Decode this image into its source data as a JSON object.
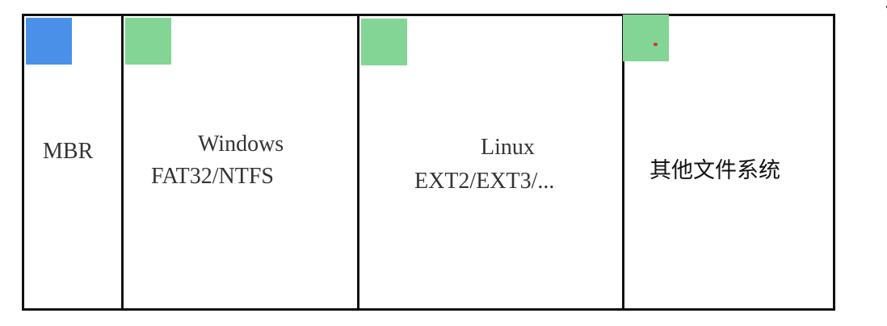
{
  "partitions": [
    {
      "name": "MBR",
      "lines": [
        "MBR"
      ],
      "marker_color": "#4a90e8"
    },
    {
      "name": "Windows",
      "lines": [
        "Windows",
        "FAT32/NTFS"
      ],
      "marker_color": "#82d595"
    },
    {
      "name": "Linux",
      "lines": [
        "Linux",
        "EXT2/EXT3/..."
      ],
      "marker_color": "#82d595"
    },
    {
      "name": "其他文件系统",
      "lines": [
        "其他文件系统"
      ],
      "marker_color": "#82d595"
    }
  ],
  "colors": {
    "border": "#111111",
    "text": "#333333",
    "marker_blue": "#4a90e8",
    "marker_green": "#82d595",
    "red_dot": "#e0302a"
  }
}
